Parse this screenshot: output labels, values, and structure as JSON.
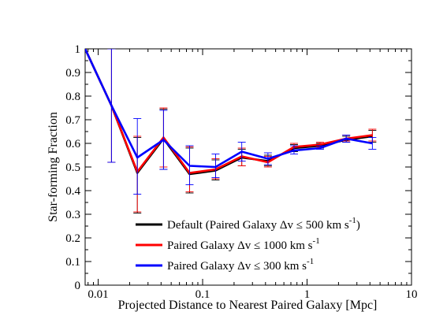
{
  "chart_data": {
    "type": "line",
    "title": "",
    "xlabel": "Projected Distance to Nearest Paired Galaxy [Mpc]",
    "ylabel": "Star-forming Fraction",
    "xscale": "log",
    "xlim": [
      0.0075,
      10
    ],
    "ylim": [
      0,
      1
    ],
    "grid": false,
    "legend_position": "lower-center",
    "x_tick_labels": [
      {
        "value": 0.01,
        "label": "0.01"
      },
      {
        "value": 0.1,
        "label": "0.1"
      },
      {
        "value": 1,
        "label": "1"
      },
      {
        "value": 10,
        "label": "10"
      }
    ],
    "y_tick_labels": [
      {
        "value": 0,
        "label": "0"
      },
      {
        "value": 0.1,
        "label": "0.1"
      },
      {
        "value": 0.2,
        "label": "0.2"
      },
      {
        "value": 0.3,
        "label": "0.3"
      },
      {
        "value": 0.4,
        "label": "0.4"
      },
      {
        "value": 0.5,
        "label": "0.5"
      },
      {
        "value": 0.6,
        "label": "0.6"
      },
      {
        "value": 0.7,
        "label": "0.7"
      },
      {
        "value": 0.8,
        "label": "0.8"
      },
      {
        "value": 0.9,
        "label": "0.9"
      },
      {
        "value": 1,
        "label": "1"
      }
    ],
    "x": [
      0.0075,
      0.0134,
      0.0237,
      0.0422,
      0.075,
      0.133,
      0.237,
      0.422,
      0.75,
      1.33,
      2.37,
      4.22
    ],
    "series": [
      {
        "legend_label": "Default (Paired Galaxy Δv ≤ 500 km s",
        "legend_sup": "-1",
        "legend_suffix": ")",
        "color": "#000000",
        "values": [
          1.0,
          0.76,
          0.475,
          0.62,
          0.47,
          0.485,
          0.54,
          0.525,
          0.58,
          0.59,
          0.615,
          0.63
        ],
        "err_lo": [
          1.0,
          0.52,
          0.305,
          0.49,
          0.39,
          0.445,
          0.505,
          0.505,
          0.565,
          0.58,
          0.605,
          0.605
        ],
        "err_hi": [
          1.0,
          1.0,
          0.625,
          0.745,
          0.58,
          0.53,
          0.575,
          0.55,
          0.595,
          0.6,
          0.63,
          0.655
        ]
      },
      {
        "legend_label": "Paired Galaxy Δv ≤ 1000 km s",
        "legend_sup": "-1",
        "legend_suffix": "",
        "color": "#ff0000",
        "values": [
          1.0,
          0.76,
          0.48,
          0.625,
          0.475,
          0.49,
          0.545,
          0.52,
          0.585,
          0.595,
          0.62,
          0.635
        ],
        "err_lo": [
          1.0,
          0.52,
          0.31,
          0.5,
          0.395,
          0.45,
          0.505,
          0.5,
          0.57,
          0.585,
          0.61,
          0.61
        ],
        "err_hi": [
          1.0,
          1.0,
          0.63,
          0.75,
          0.585,
          0.535,
          0.58,
          0.545,
          0.6,
          0.605,
          0.635,
          0.66
        ]
      },
      {
        "legend_label": "Paired Galaxy Δv ≤ 300 km s",
        "legend_sup": "-1",
        "legend_suffix": "",
        "color": "#0000ff",
        "values": [
          1.0,
          0.76,
          0.54,
          0.615,
          0.505,
          0.5,
          0.565,
          0.535,
          0.57,
          0.58,
          0.62,
          0.6
        ],
        "err_lo": [
          1.0,
          0.52,
          0.385,
          0.49,
          0.425,
          0.455,
          0.525,
          0.51,
          0.555,
          0.575,
          0.605,
          0.575
        ],
        "err_hi": [
          1.0,
          1.0,
          0.705,
          0.74,
          0.59,
          0.555,
          0.605,
          0.56,
          0.59,
          0.59,
          0.635,
          0.625
        ]
      }
    ]
  }
}
